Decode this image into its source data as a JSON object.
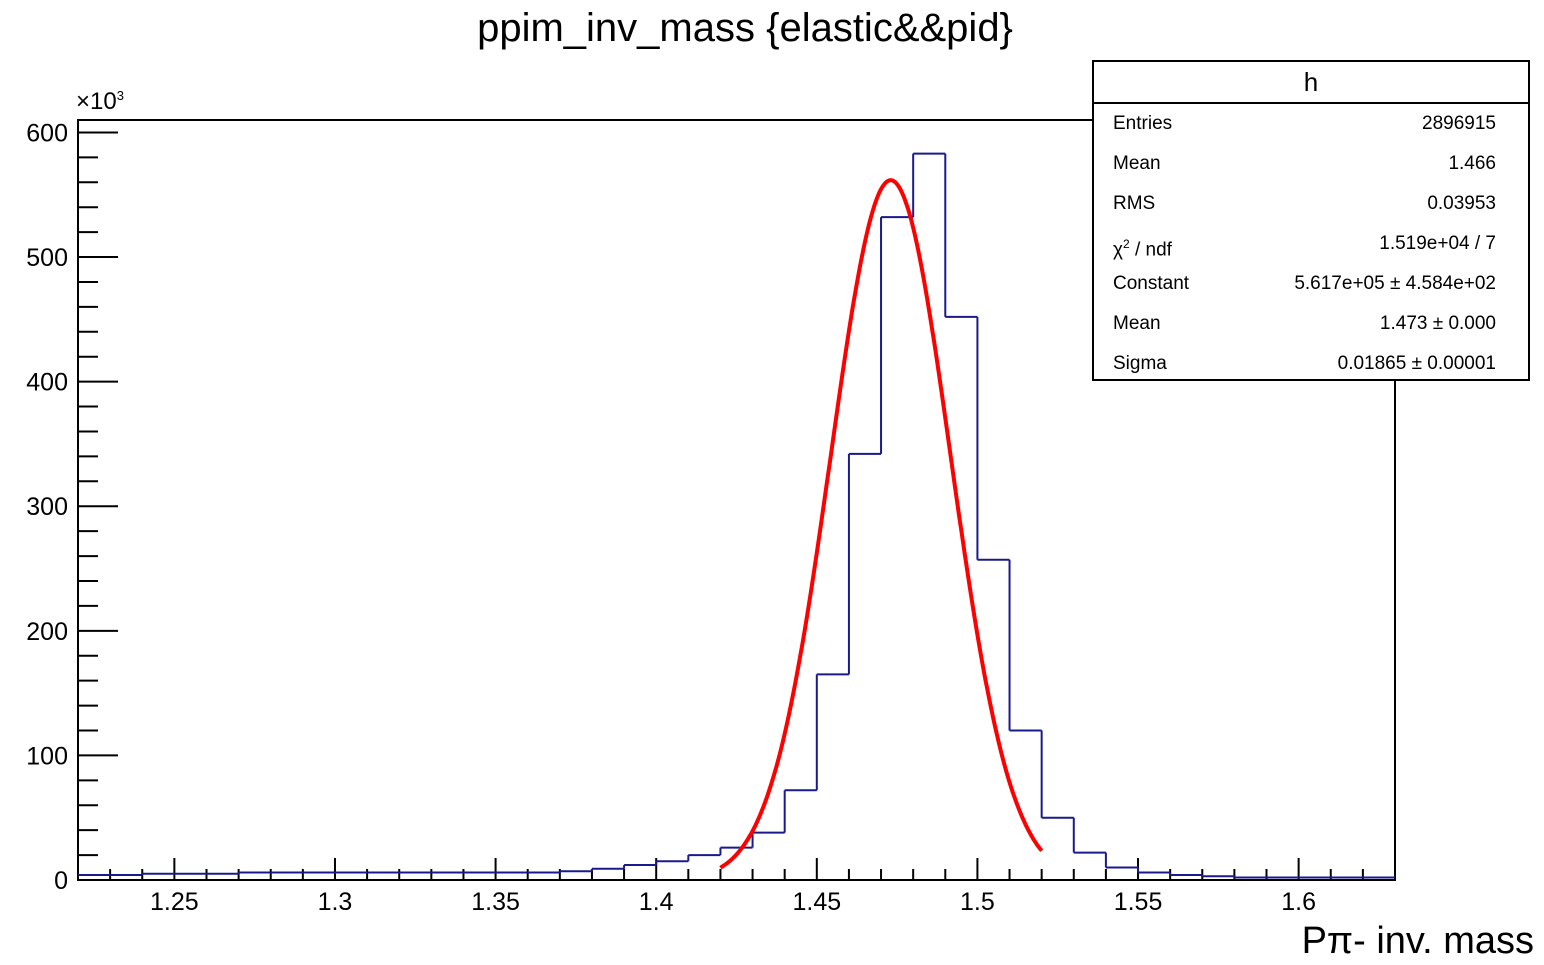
{
  "chart_data": {
    "type": "bar",
    "title": "ppim_inv_mass {elastic&&pid}",
    "xlabel": "Pπ-  inv. mass",
    "ylabel": "",
    "y_multiplier": {
      "base": "×10",
      "exp": "3"
    },
    "xlim": [
      1.22,
      1.63
    ],
    "ylim": [
      0,
      610
    ],
    "x_ticks": [
      "1.25",
      "1.3",
      "1.35",
      "1.4",
      "1.45",
      "1.5",
      "1.55",
      "1.6"
    ],
    "y_ticks": [
      "0",
      "100",
      "200",
      "300",
      "400",
      "500",
      "600"
    ],
    "bin_edges": [
      1.22,
      1.23,
      1.24,
      1.25,
      1.26,
      1.27,
      1.28,
      1.29,
      1.3,
      1.31,
      1.32,
      1.33,
      1.34,
      1.35,
      1.36,
      1.37,
      1.38,
      1.39,
      1.4,
      1.41,
      1.42,
      1.43,
      1.44,
      1.45,
      1.46,
      1.47,
      1.48,
      1.49,
      1.5,
      1.51,
      1.52,
      1.53,
      1.54,
      1.55,
      1.56,
      1.57,
      1.58,
      1.59,
      1.6,
      1.61,
      1.62,
      1.63
    ],
    "values": [
      4,
      4,
      5,
      5,
      5,
      6,
      6,
      6,
      6,
      6,
      6,
      6,
      6,
      6,
      6,
      7,
      9,
      12,
      15,
      20,
      26,
      38,
      72,
      165,
      342,
      532,
      583,
      452,
      257,
      120,
      50,
      22,
      10,
      6,
      4,
      3,
      2,
      2,
      2,
      2,
      2
    ],
    "series": [
      {
        "name": "h",
        "kind": "histogram",
        "color": "#1a1a8c"
      },
      {
        "name": "gaus fit",
        "kind": "curve",
        "color": "#ff0000",
        "constant": 561.7,
        "mean": 1.473,
        "sigma": 0.01865,
        "range": [
          1.42,
          1.52
        ]
      }
    ],
    "grid": false,
    "legend": "top-right"
  },
  "stats": {
    "name": "h",
    "rows": [
      {
        "key": "Entries",
        "value": "2896915"
      },
      {
        "key": "Mean",
        "value": "1.466"
      },
      {
        "key": "RMS",
        "value": "0.03953"
      },
      {
        "key": "χ",
        "key_sup": "2",
        "key_rest": " / ndf",
        "value": "1.519e+04 / 7"
      },
      {
        "key": "Constant",
        "value": "5.617e+05  ± 4.584e+02"
      },
      {
        "key": "Mean",
        "value": "1.473  ± 0.000"
      },
      {
        "key": "Sigma",
        "value": "0.01865  ± 0.00001"
      }
    ]
  },
  "colors": {
    "histogram": "#1a1a8c",
    "fit": "#ff0000",
    "frame": "#000000"
  }
}
